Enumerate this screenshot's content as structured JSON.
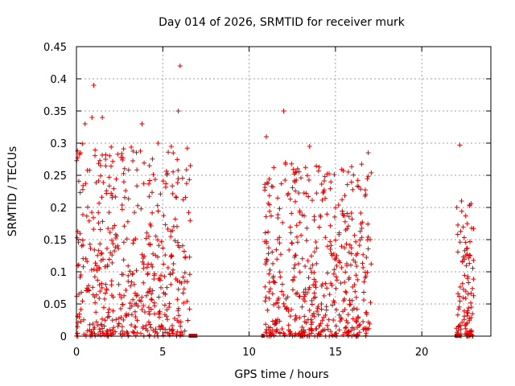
{
  "chart_data": {
    "type": "scatter",
    "title": "Day 014 of 2026, SRMTID for receiver murk",
    "xlabel": "GPS time / hours",
    "ylabel": "SRMTID / TECUs",
    "xlim": [
      0,
      24
    ],
    "ylim": [
      0,
      0.45
    ],
    "x_ticks": [
      0,
      5,
      10,
      15,
      20
    ],
    "x_tick_labels": [
      "0",
      "5",
      "10",
      "15",
      "20"
    ],
    "y_ticks": [
      0,
      0.05,
      0.1,
      0.15,
      0.2,
      0.25,
      0.3,
      0.35,
      0.4,
      0.45
    ],
    "y_tick_labels": [
      "0",
      "0.05",
      "0.1",
      "0.15",
      "0.2",
      "0.25",
      "0.3",
      "0.35",
      "0.4",
      "0.45"
    ],
    "grid": true,
    "marker": "+",
    "color": "#e00000",
    "series": [
      {
        "name": "SRMTID",
        "notable_points": [
          {
            "x": 1.0,
            "y": 0.39
          },
          {
            "x": 6.0,
            "y": 0.42
          },
          {
            "x": 0.5,
            "y": 0.33
          },
          {
            "x": 0.9,
            "y": 0.34
          },
          {
            "x": 1.5,
            "y": 0.34
          },
          {
            "x": 3.8,
            "y": 0.33
          },
          {
            "x": 5.9,
            "y": 0.35
          },
          {
            "x": 6.6,
            "y": 0.265
          },
          {
            "x": 11.0,
            "y": 0.31
          },
          {
            "x": 12.0,
            "y": 0.35
          },
          {
            "x": 13.5,
            "y": 0.295
          },
          {
            "x": 16.9,
            "y": 0.285
          },
          {
            "x": 22.2,
            "y": 0.297
          },
          {
            "x": 22.3,
            "y": 0.21
          },
          {
            "x": 22.8,
            "y": 0.125
          }
        ],
        "clusters": [
          {
            "x_range": [
              0.0,
              6.6
            ],
            "y_range": [
              0.0,
              0.3
            ],
            "density": "high"
          },
          {
            "x_range": [
              10.9,
              17.1
            ],
            "y_range": [
              0.0,
              0.27
            ],
            "density": "high"
          },
          {
            "x_range": [
              22.0,
              23.0
            ],
            "y_range": [
              0.0,
              0.21
            ],
            "density": "medium"
          }
        ],
        "zero_segments": [
          {
            "x_range": [
              6.5,
              7.0
            ]
          },
          {
            "x_range": [
              10.7,
              10.9
            ]
          },
          {
            "x_range": [
              21.9,
              22.3
            ]
          }
        ]
      }
    ]
  }
}
